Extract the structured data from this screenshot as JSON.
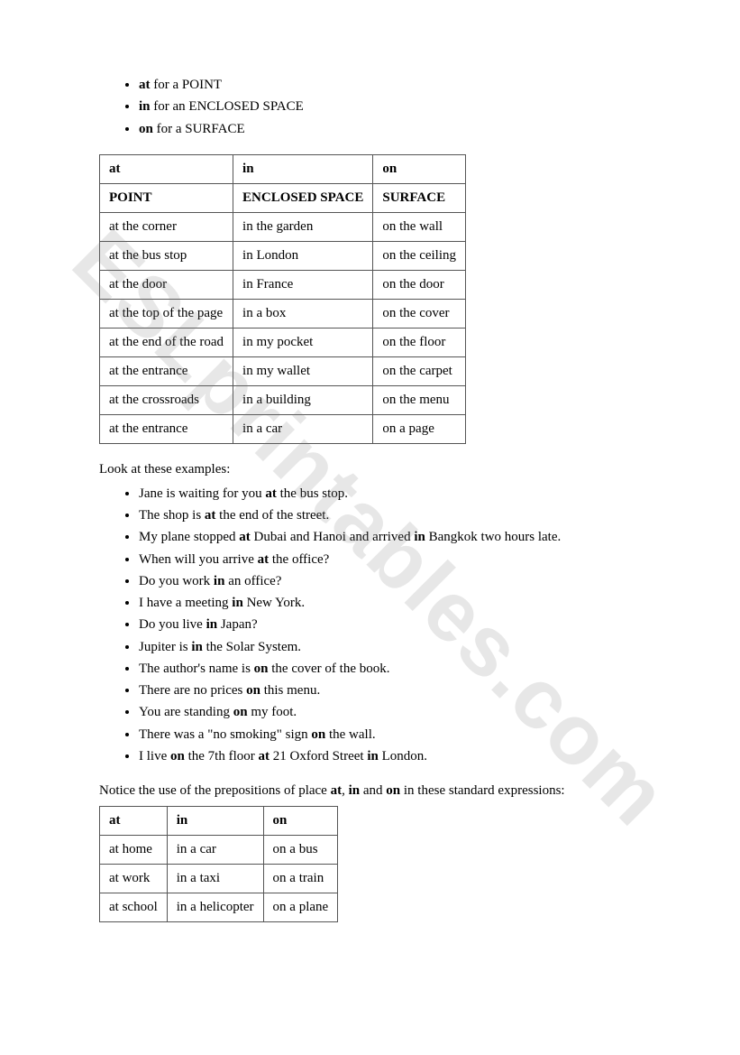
{
  "intro_bullets": [
    {
      "bold": "at",
      "rest": " for a POINT"
    },
    {
      "bold": "in",
      "rest": " for an ENCLOSED SPACE"
    },
    {
      "bold": "on",
      "rest": " for a SURFACE"
    }
  ],
  "table1": {
    "columns": [
      {
        "head": "at",
        "sub": "POINT"
      },
      {
        "head": "in",
        "sub": "ENCLOSED SPACE"
      },
      {
        "head": "on",
        "sub": "SURFACE"
      }
    ],
    "rows": [
      [
        "at the corner",
        "in the garden",
        "on the wall"
      ],
      [
        "at the bus stop",
        "in London",
        "on the ceiling"
      ],
      [
        "at the door",
        "in France",
        "on the door"
      ],
      [
        "at the top of the page",
        "in a box",
        "on the cover"
      ],
      [
        "at the end of the road",
        "in my pocket",
        "on the floor"
      ],
      [
        "at the entrance",
        "in my wallet",
        "on the carpet"
      ],
      [
        "at the crossroads",
        "in a building",
        "on the menu"
      ],
      [
        "at the entrance",
        "in a car",
        "on a page"
      ]
    ]
  },
  "examples_intro": "Look at these examples:",
  "examples": [
    [
      [
        "Jane is waiting for you "
      ],
      [
        "at",
        true
      ],
      [
        " the bus stop."
      ]
    ],
    [
      [
        "The shop is "
      ],
      [
        "at",
        true
      ],
      [
        " the end of the street."
      ]
    ],
    [
      [
        "My plane stopped "
      ],
      [
        "at",
        true
      ],
      [
        " Dubai and Hanoi and arrived "
      ],
      [
        "in",
        true
      ],
      [
        " Bangkok two hours late."
      ]
    ],
    [
      [
        "When will you arrive "
      ],
      [
        "at",
        true
      ],
      [
        " the office?"
      ]
    ],
    [
      [
        "Do you work "
      ],
      [
        "in",
        true
      ],
      [
        " an office?"
      ]
    ],
    [
      [
        "I have a meeting "
      ],
      [
        "in",
        true
      ],
      [
        " New York."
      ]
    ],
    [
      [
        "Do you live "
      ],
      [
        "in",
        true
      ],
      [
        " Japan?"
      ]
    ],
    [
      [
        "Jupiter is "
      ],
      [
        "in",
        true
      ],
      [
        " the Solar System."
      ]
    ],
    [
      [
        "The author's name is "
      ],
      [
        "on",
        true
      ],
      [
        " the cover of the book."
      ]
    ],
    [
      [
        "There are no prices "
      ],
      [
        "on",
        true
      ],
      [
        " this menu."
      ]
    ],
    [
      [
        "You are standing "
      ],
      [
        "on",
        true
      ],
      [
        " my foot."
      ]
    ],
    [
      [
        "There was a \"no smoking\" sign "
      ],
      [
        "on",
        true
      ],
      [
        " the wall."
      ]
    ],
    [
      [
        "I live "
      ],
      [
        "on",
        true
      ],
      [
        " the 7th floor "
      ],
      [
        "at",
        true
      ],
      [
        " 21 Oxford Street "
      ],
      [
        "in",
        true
      ],
      [
        " London."
      ]
    ]
  ],
  "notice_text": {
    "parts": [
      [
        "Notice the use of the prepositions of place "
      ],
      [
        "at",
        true
      ],
      [
        ", "
      ],
      [
        "in",
        true
      ],
      [
        " and "
      ],
      [
        "on",
        true
      ],
      [
        " in these standard expressions:"
      ]
    ]
  },
  "table2": {
    "headers": [
      "at",
      "in",
      "on"
    ],
    "rows": [
      [
        "at home",
        "in a car",
        "on a bus"
      ],
      [
        "at work",
        "in a taxi",
        "on a train"
      ],
      [
        "at school",
        "in a helicopter",
        "on a plane"
      ]
    ]
  },
  "watermark": "ESLprintables.com"
}
